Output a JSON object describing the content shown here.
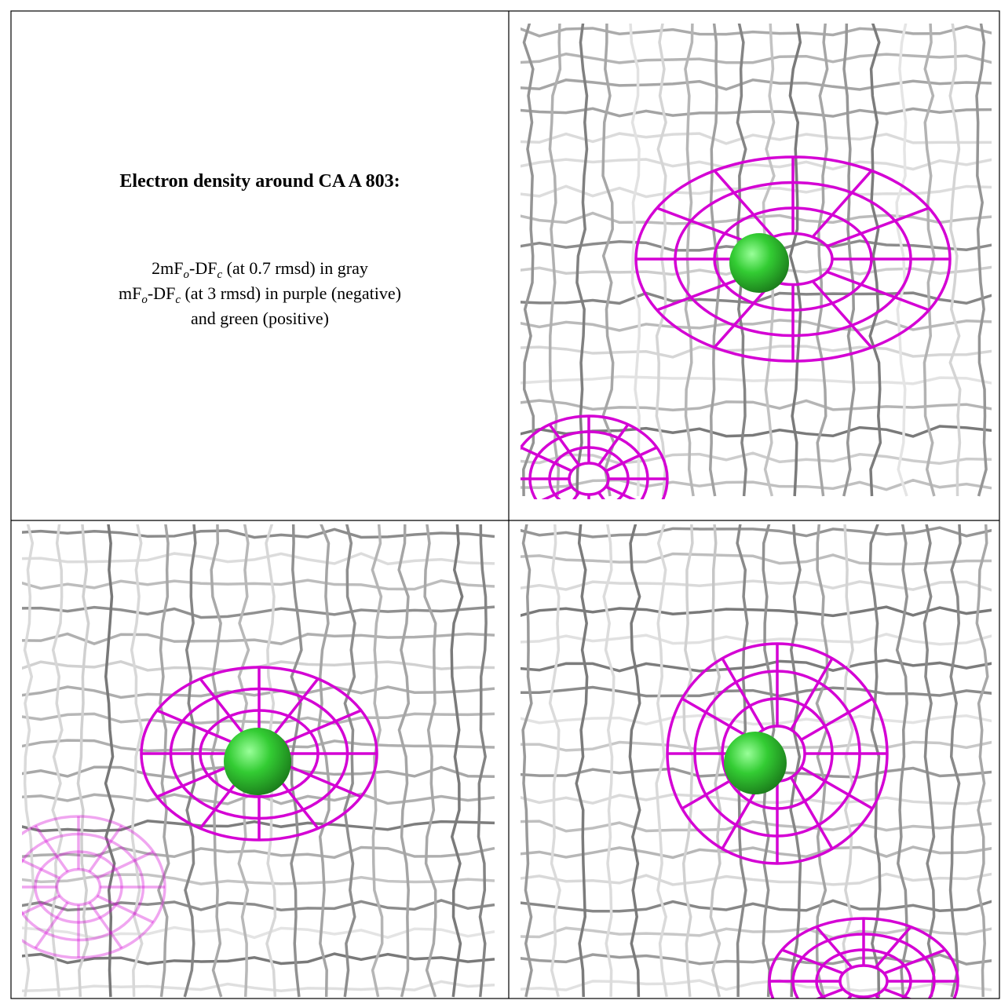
{
  "caption": {
    "title": "Electron density around CA A 803:",
    "lines": [
      [
        "2mF",
        "o",
        "-DF",
        "c",
        " (at 0.7 rmsd) in gray"
      ],
      [
        "mF",
        "o",
        "-DF",
        "c",
        " (at 3 rmsd) in purple (negative)"
      ],
      [
        "and green (positive)"
      ]
    ]
  }
}
